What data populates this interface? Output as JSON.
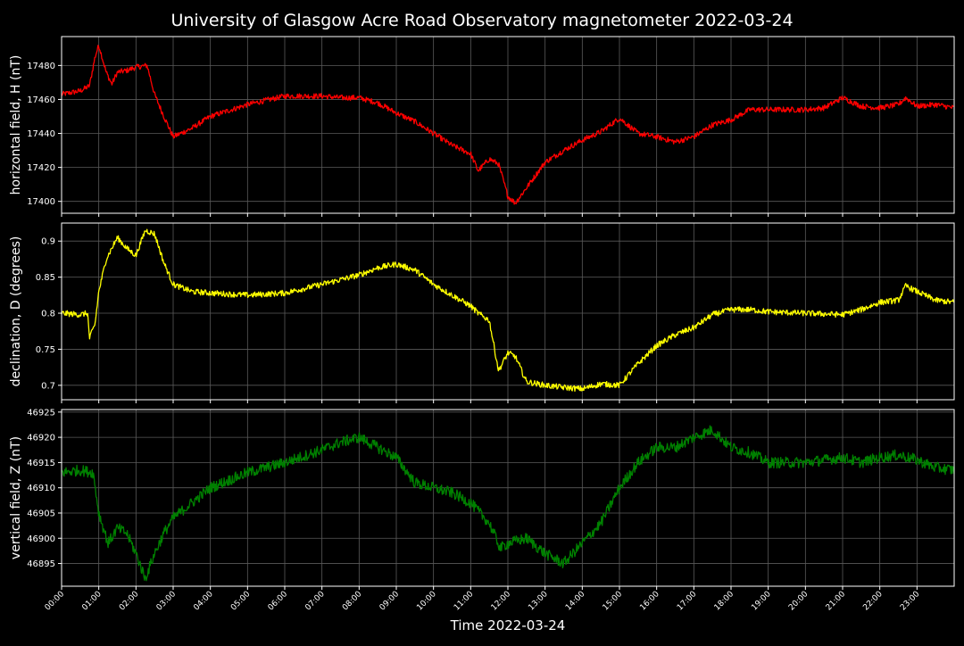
{
  "title": "University of Glasgow Acre Road Observatory magnetometer 2022-03-24",
  "chart_data": [
    {
      "type": "line",
      "ylabel": "horizontal field, H (nT)",
      "ylim": [
        17393,
        17497
      ],
      "yticks": [
        17400,
        17420,
        17440,
        17460,
        17480
      ],
      "color": "#ff0000",
      "noise": 1.6,
      "x_hours": [
        0,
        0.5,
        0.75,
        0.9,
        1.0,
        1.2,
        1.35,
        1.5,
        1.75,
        2.0,
        2.3,
        2.5,
        2.75,
        3.0,
        3.5,
        4.0,
        5.0,
        6.0,
        7.0,
        7.5,
        8.0,
        8.5,
        9.0,
        9.5,
        10.0,
        10.5,
        11.0,
        11.2,
        11.5,
        11.75,
        12.0,
        12.2,
        12.5,
        13.0,
        13.5,
        14.0,
        14.5,
        15.0,
        15.5,
        16.0,
        16.5,
        17.0,
        17.5,
        18.0,
        18.5,
        19.0,
        20.0,
        20.5,
        21.0,
        21.5,
        22.0,
        22.5,
        22.7,
        23.0,
        23.5,
        24.0
      ],
      "values": [
        17463,
        17465,
        17468,
        17485,
        17492,
        17476,
        17469,
        17476,
        17477,
        17479,
        17480,
        17463,
        17450,
        17438,
        17443,
        17450,
        17457,
        17462,
        17462,
        17461,
        17461,
        17458,
        17452,
        17447,
        17440,
        17433,
        17428,
        17418,
        17425,
        17422,
        17403,
        17399,
        17408,
        17423,
        17430,
        17436,
        17441,
        17449,
        17440,
        17438,
        17435,
        17438,
        17445,
        17448,
        17454,
        17454,
        17454,
        17455,
        17461,
        17456,
        17455,
        17457,
        17461,
        17456,
        17457,
        17455
      ]
    },
    {
      "type": "line",
      "ylabel": "declination, D (degrees)",
      "ylim": [
        0.68,
        0.925
      ],
      "yticks": [
        0.7,
        0.75,
        0.8,
        0.85,
        0.9
      ],
      "color": "#ffff00",
      "noise": 0.004,
      "x_hours": [
        0,
        0.5,
        0.7,
        0.75,
        0.9,
        1.0,
        1.2,
        1.5,
        1.75,
        2.0,
        2.25,
        2.5,
        2.75,
        3.0,
        3.5,
        4.0,
        5.0,
        6.0,
        7.0,
        8.0,
        8.5,
        9.0,
        9.5,
        10.0,
        10.5,
        11.0,
        11.2,
        11.5,
        11.75,
        12.0,
        12.2,
        12.5,
        13.0,
        13.5,
        14.0,
        14.5,
        15.0,
        15.5,
        16.0,
        16.5,
        17.0,
        17.5,
        18.0,
        18.5,
        19.0,
        20.0,
        21.0,
        21.5,
        22.0,
        22.5,
        22.7,
        23.0,
        23.5,
        24.0
      ],
      "values": [
        0.8,
        0.798,
        0.8,
        0.765,
        0.785,
        0.83,
        0.875,
        0.905,
        0.89,
        0.88,
        0.915,
        0.91,
        0.87,
        0.84,
        0.83,
        0.828,
        0.825,
        0.828,
        0.84,
        0.853,
        0.863,
        0.868,
        0.86,
        0.84,
        0.825,
        0.81,
        0.8,
        0.79,
        0.72,
        0.745,
        0.74,
        0.705,
        0.7,
        0.697,
        0.695,
        0.702,
        0.7,
        0.73,
        0.755,
        0.77,
        0.78,
        0.798,
        0.805,
        0.805,
        0.802,
        0.8,
        0.798,
        0.805,
        0.815,
        0.818,
        0.838,
        0.83,
        0.818,
        0.815
      ]
    },
    {
      "type": "line",
      "ylabel": "vertical field, Z (nT)",
      "ylim": [
        46890.5,
        46925.5
      ],
      "yticks": [
        46895,
        46900,
        46905,
        46910,
        46915,
        46920,
        46925
      ],
      "color": "#008000",
      "noise": 1.1,
      "x_hours": [
        0,
        0.5,
        0.85,
        1.0,
        1.25,
        1.5,
        1.75,
        2.0,
        2.25,
        2.5,
        2.75,
        3.0,
        3.5,
        4.0,
        5.0,
        6.0,
        7.0,
        7.5,
        8.0,
        8.5,
        9.0,
        9.5,
        10.0,
        10.5,
        11.0,
        11.5,
        11.8,
        12.0,
        12.5,
        13.0,
        13.5,
        14.0,
        14.5,
        15.0,
        15.5,
        16.0,
        16.5,
        17.0,
        17.5,
        18.0,
        18.5,
        19.0,
        20.0,
        21.0,
        21.5,
        22.0,
        22.5,
        23.0,
        23.5,
        24.0
      ],
      "values": [
        46913,
        46913.5,
        46913,
        46905,
        46899,
        46902,
        46901,
        46897,
        46892,
        46897,
        46901,
        46904,
        46907,
        46910,
        46913,
        46915,
        46917.5,
        46919,
        46920,
        46918,
        46916,
        46911,
        46910,
        46909,
        46907,
        46903,
        46898,
        46899,
        46900,
        46897,
        46895,
        46899,
        46903,
        46910,
        46915,
        46918,
        46918,
        46920,
        46921.5,
        46918,
        46917,
        46915,
        46915,
        46916,
        46915,
        46916,
        46916.5,
        46915.5,
        46914,
        46913.5
      ]
    }
  ],
  "x_axis": {
    "label": "Time 2022-03-24",
    "range_hours": [
      0,
      24
    ],
    "tick_labels": [
      "00:00",
      "01:00",
      "02:00",
      "03:00",
      "04:00",
      "05:00",
      "06:00",
      "07:00",
      "08:00",
      "09:00",
      "10:00",
      "11:00",
      "12:00",
      "13:00",
      "14:00",
      "15:00",
      "16:00",
      "17:00",
      "18:00",
      "19:00",
      "20:00",
      "21:00",
      "22:00",
      "23:00"
    ]
  },
  "grid": true,
  "colors": {
    "background": "#000000",
    "axes": "#ffffff",
    "grid": "#5a5a5a"
  }
}
